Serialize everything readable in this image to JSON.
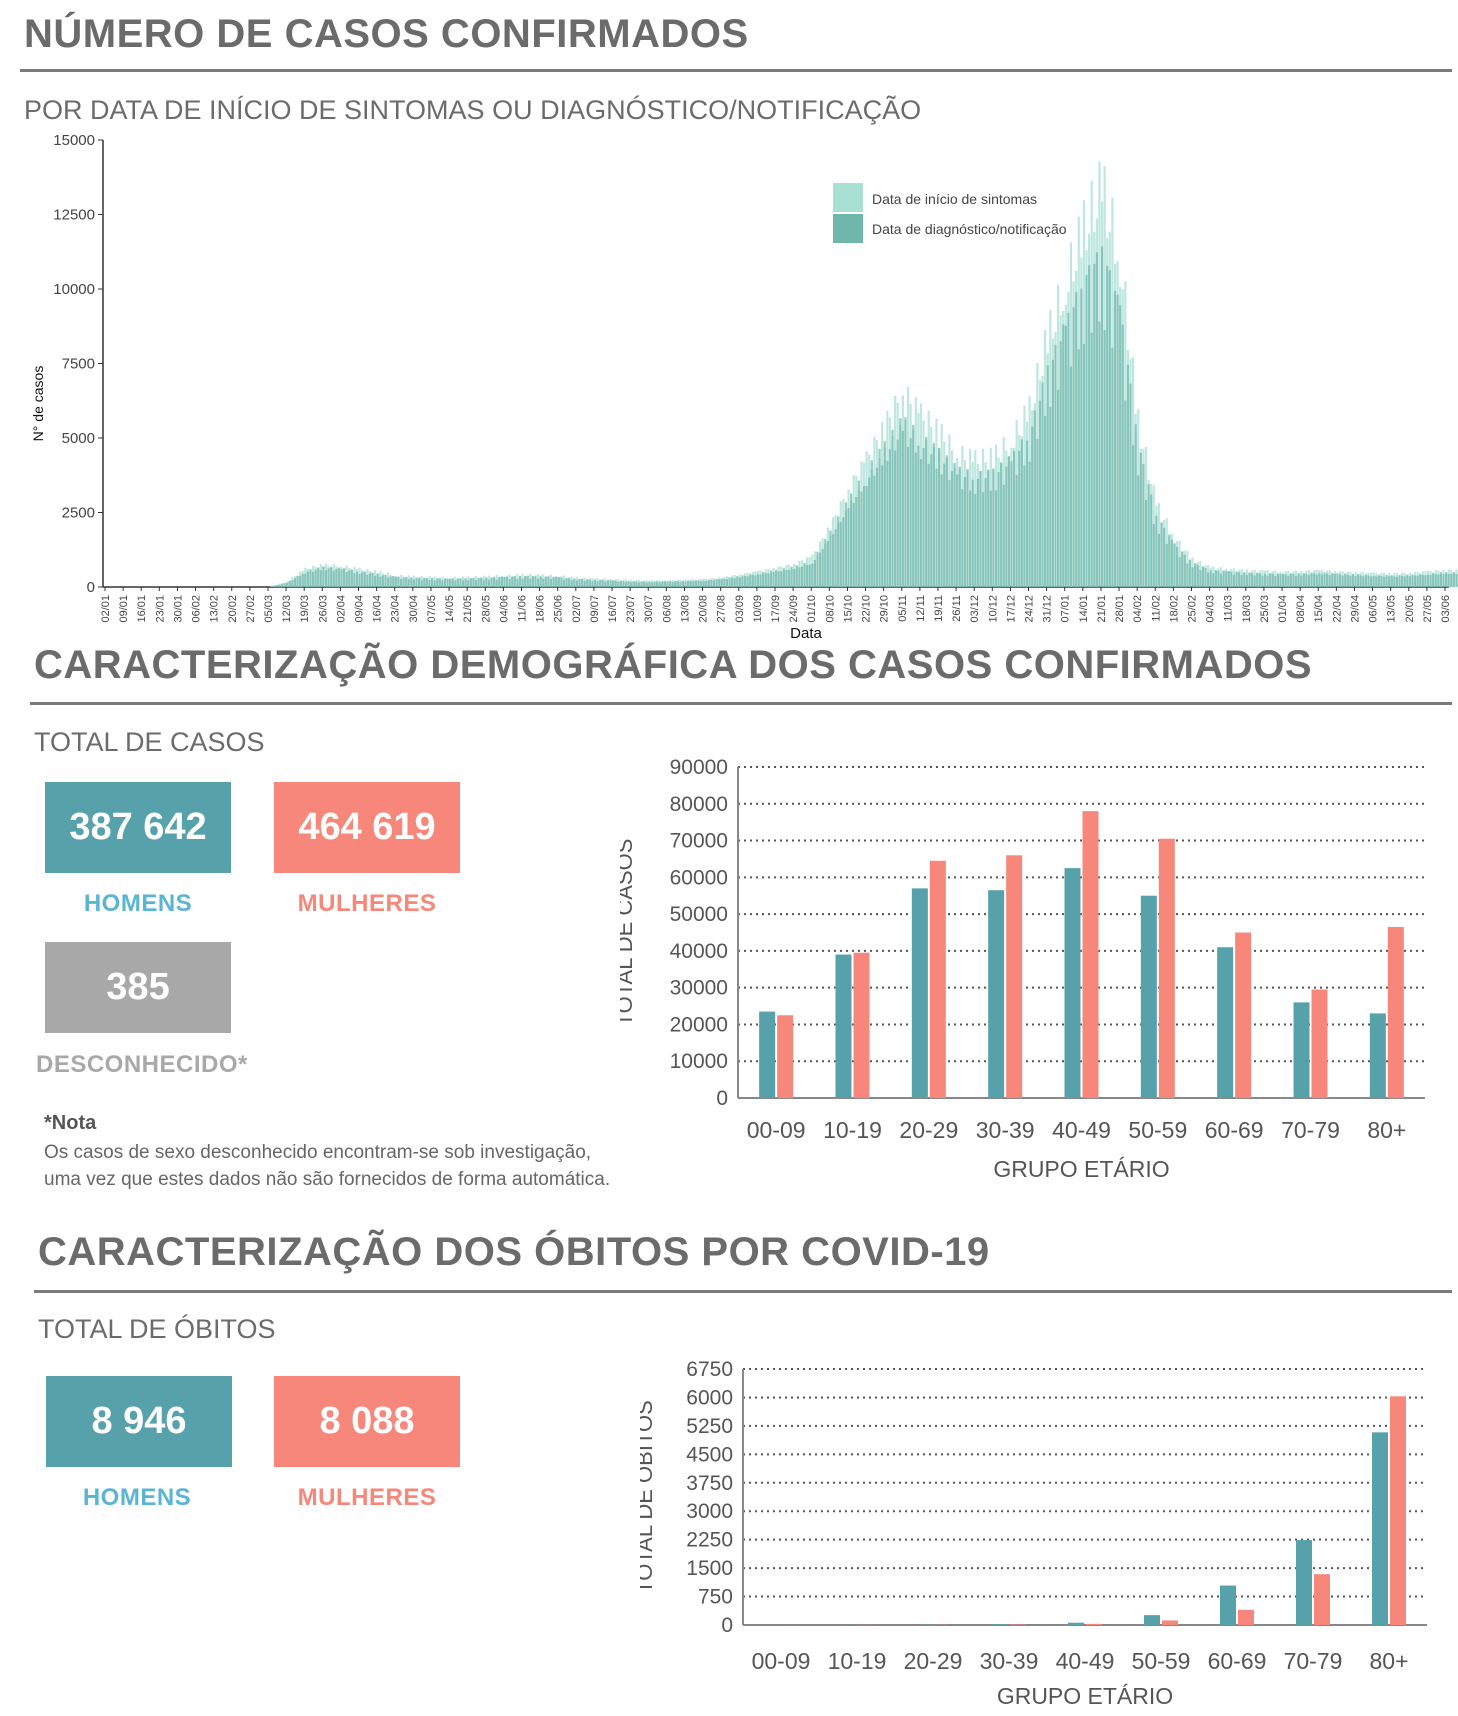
{
  "colors": {
    "men": "#57a1ab",
    "women": "#f6877a",
    "unknown": "#a8a8a8",
    "symptom": "#a8e0d4",
    "diagnosis": "#6fb7ab",
    "heading": "#6b6b6b",
    "men_label": "#5ab4d4"
  },
  "section1": {
    "title": "NÚMERO DE CASOS CONFIRMADOS",
    "subtitle": "POR DATA DE INÍCIO DE SINTOMAS OU DIAGNÓSTICO/NOTIFICAÇÃO"
  },
  "section2": {
    "title": "CARACTERIZAÇÃO DEMOGRÁFICA DOS CASOS CONFIRMADOS",
    "subtitle": "TOTAL DE CASOS",
    "men_value": "387 642",
    "men_label": "HOMENS",
    "women_value": "464 619",
    "women_label": "MULHERES",
    "unknown_value": "385",
    "unknown_label": "DESCONHECIDO*",
    "note_title": "*Nota",
    "note_line1": "Os casos de sexo desconhecido encontram-se sob investigação,",
    "note_line2": "uma vez que estes dados não são fornecidos de forma automática."
  },
  "section3": {
    "title": "CARACTERIZAÇÃO DOS ÓBITOS POR COVID-19",
    "subtitle": "TOTAL DE ÓBITOS",
    "men_value": "8 946",
    "men_label": "HOMENS",
    "women_value": "8 088",
    "women_label": "MULHERES"
  },
  "chart_data": [
    {
      "type": "bar",
      "xlabel": "Data",
      "ylabel": "N° de casos",
      "ylim": [
        0,
        15000
      ],
      "yticks": [
        0,
        2500,
        5000,
        7500,
        10000,
        12500,
        15000
      ],
      "x_ticks": [
        "02/01",
        "09/01",
        "16/01",
        "23/01",
        "30/01",
        "06/02",
        "13/02",
        "20/02",
        "27/02",
        "05/03",
        "12/03",
        "19/03",
        "26/03",
        "02/04",
        "09/04",
        "16/04",
        "23/04",
        "30/04",
        "07/05",
        "14/05",
        "21/05",
        "28/05",
        "04/06",
        "11/06",
        "18/06",
        "25/06",
        "02/07",
        "09/07",
        "16/07",
        "23/07",
        "30/07",
        "06/08",
        "13/08",
        "20/08",
        "27/08",
        "03/09",
        "10/09",
        "17/09",
        "24/09",
        "01/10",
        "08/10",
        "15/10",
        "22/10",
        "29/10",
        "05/11",
        "12/11",
        "19/11",
        "26/11",
        "03/12",
        "10/12",
        "17/12",
        "24/12",
        "31/12",
        "07/01",
        "14/01",
        "21/01",
        "28/01",
        "04/02",
        "11/02",
        "18/02",
        "25/02",
        "04/03",
        "11/03",
        "18/03",
        "25/03",
        "01/04",
        "08/04",
        "15/04",
        "22/04",
        "29/04",
        "06/05",
        "13/05",
        "20/05",
        "27/05",
        "03/06"
      ],
      "legend_position": "top-right",
      "grid": false,
      "series": [
        {
          "name": "Data de início de sintomas",
          "weekly_peak_values": [
            0,
            0,
            0,
            0,
            0,
            0,
            0,
            0,
            0,
            0,
            200,
            650,
            800,
            750,
            650,
            550,
            420,
            380,
            360,
            340,
            360,
            380,
            420,
            440,
            430,
            400,
            340,
            300,
            280,
            250,
            230,
            240,
            260,
            280,
            340,
            440,
            560,
            680,
            820,
            1100,
            2200,
            3500,
            4600,
            5800,
            7000,
            6200,
            5600,
            4800,
            4600,
            4700,
            5300,
            6400,
            9000,
            11000,
            13000,
            14500,
            12000,
            6000,
            3000,
            1800,
            1000,
            700,
            650,
            600,
            580,
            550,
            560,
            600,
            550,
            520,
            500,
            480,
            500,
            560,
            600
          ]
        },
        {
          "name": "Data de diagnóstico/notificação",
          "weekly_peak_values": [
            0,
            0,
            0,
            0,
            0,
            0,
            0,
            0,
            0,
            0,
            150,
            550,
            700,
            650,
            550,
            450,
            350,
            320,
            300,
            280,
            300,
            320,
            350,
            380,
            370,
            340,
            280,
            250,
            230,
            200,
            190,
            200,
            220,
            240,
            290,
            380,
            480,
            580,
            700,
            900,
            1900,
            3000,
            4000,
            4900,
            5800,
            5200,
            4700,
            4100,
            3900,
            4000,
            4500,
            5400,
            7600,
            9200,
            10800,
            11800,
            9800,
            5000,
            2500,
            1500,
            850,
            600,
            550,
            500,
            480,
            460,
            470,
            510,
            470,
            440,
            420,
            400,
            420,
            470,
            500
          ]
        }
      ]
    },
    {
      "type": "bar",
      "xlabel": "GRUPO ETÁRIO",
      "ylabel": "TOTAL DE CASOS",
      "ylim": [
        0,
        90000
      ],
      "yticks": [
        0,
        10000,
        20000,
        30000,
        40000,
        50000,
        60000,
        70000,
        80000,
        90000
      ],
      "ytick_labels": [
        "0",
        "10000",
        "20000",
        "30000",
        "40000",
        "50000",
        "60000",
        "70000",
        "80000",
        "90000"
      ],
      "categories": [
        "00-09",
        "10-19",
        "20-29",
        "30-39",
        "40-49",
        "50-59",
        "60-69",
        "70-79",
        "80+"
      ],
      "grid": true,
      "series": [
        {
          "values": [
            23500,
            39000,
            57000,
            56500,
            62500,
            55000,
            41000,
            26000,
            23000
          ]
        },
        {
          "values": [
            22500,
            39500,
            64500,
            66000,
            78000,
            70500,
            45000,
            29500,
            46500
          ]
        }
      ]
    },
    {
      "type": "bar",
      "xlabel": "GRUPO ETÁRIO",
      "ylabel": "TOTAL DE ÓBITOS",
      "ylim": [
        0,
        6750
      ],
      "yticks": [
        0,
        750,
        1500,
        2250,
        3000,
        3750,
        4500,
        5250,
        6000,
        6750
      ],
      "ytick_labels": [
        "0",
        "750",
        "1500",
        "2250",
        "3000",
        "3750",
        "4500",
        "5250",
        "6000",
        "6750"
      ],
      "categories": [
        "00-09",
        "10-19",
        "20-29",
        "30-39",
        "40-49",
        "50-59",
        "60-69",
        "70-79",
        "80+"
      ],
      "grid": true,
      "series": [
        {
          "values": [
            2,
            4,
            8,
            20,
            60,
            260,
            1040,
            2240,
            5080
          ]
        },
        {
          "values": [
            1,
            3,
            5,
            12,
            30,
            120,
            400,
            1340,
            6030
          ]
        }
      ]
    }
  ]
}
